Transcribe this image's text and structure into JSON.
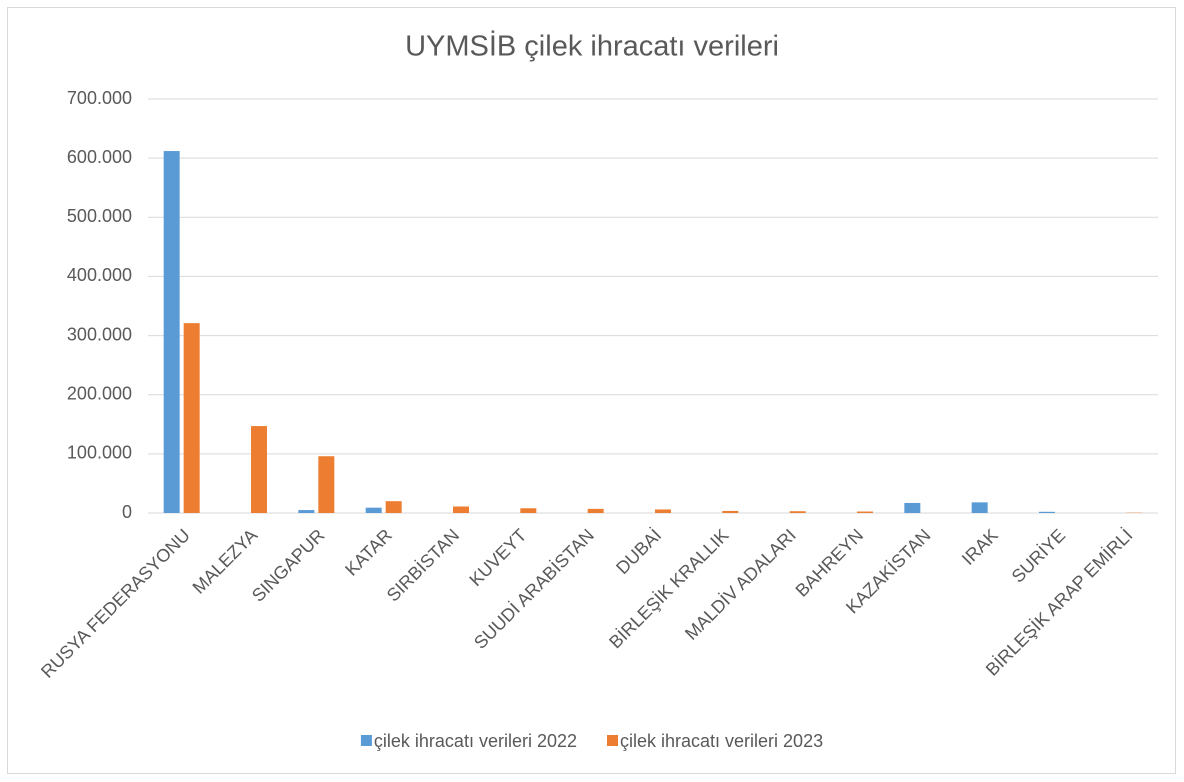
{
  "chart_data": {
    "type": "bar",
    "title": "UYMSİB çilek ihracatı verileri",
    "categories": [
      "RUSYA FEDERASYONU",
      "MALEZYA",
      "SINGAPUR",
      "KATAR",
      "SIRBİSTAN",
      "KUVEYT",
      "SUUDİ ARABİSTAN",
      "DUBAİ",
      "BİRLEŞİK KRALLIK",
      "MALDİV ADALARI",
      "BAHREYN",
      "KAZAKİSTAN",
      "IRAK",
      "SURİYE",
      "BİRLEŞİK ARAP EMİRLİ"
    ],
    "series": [
      {
        "name": "çilek ihracatı verileri 2022",
        "color": "#5b9bd5",
        "values": [
          612000,
          0,
          5000,
          9000,
          0,
          0,
          0,
          0,
          0,
          0,
          0,
          17000,
          18000,
          2000,
          0
        ]
      },
      {
        "name": "çilek ihracatı verileri 2023",
        "color": "#ed7d31",
        "values": [
          321000,
          147000,
          96000,
          20000,
          11000,
          8000,
          7000,
          6000,
          3500,
          3000,
          2500,
          0,
          0,
          0,
          500
        ]
      }
    ],
    "ylim": [
      0,
      700000
    ],
    "yticks": [
      0,
      {
        "value": 100000,
        "label": "100.000"
      },
      {
        "value": 200000,
        "label": "200.000"
      },
      {
        "value": 300000,
        "label": "300.000"
      },
      {
        "value": 400000,
        "label": "400.000"
      },
      {
        "value": 500000,
        "label": "500.000"
      },
      {
        "value": 600000,
        "label": "600.000"
      },
      {
        "value": 700000,
        "label": "700.000"
      }
    ],
    "grid": true,
    "legend": "bottom"
  }
}
